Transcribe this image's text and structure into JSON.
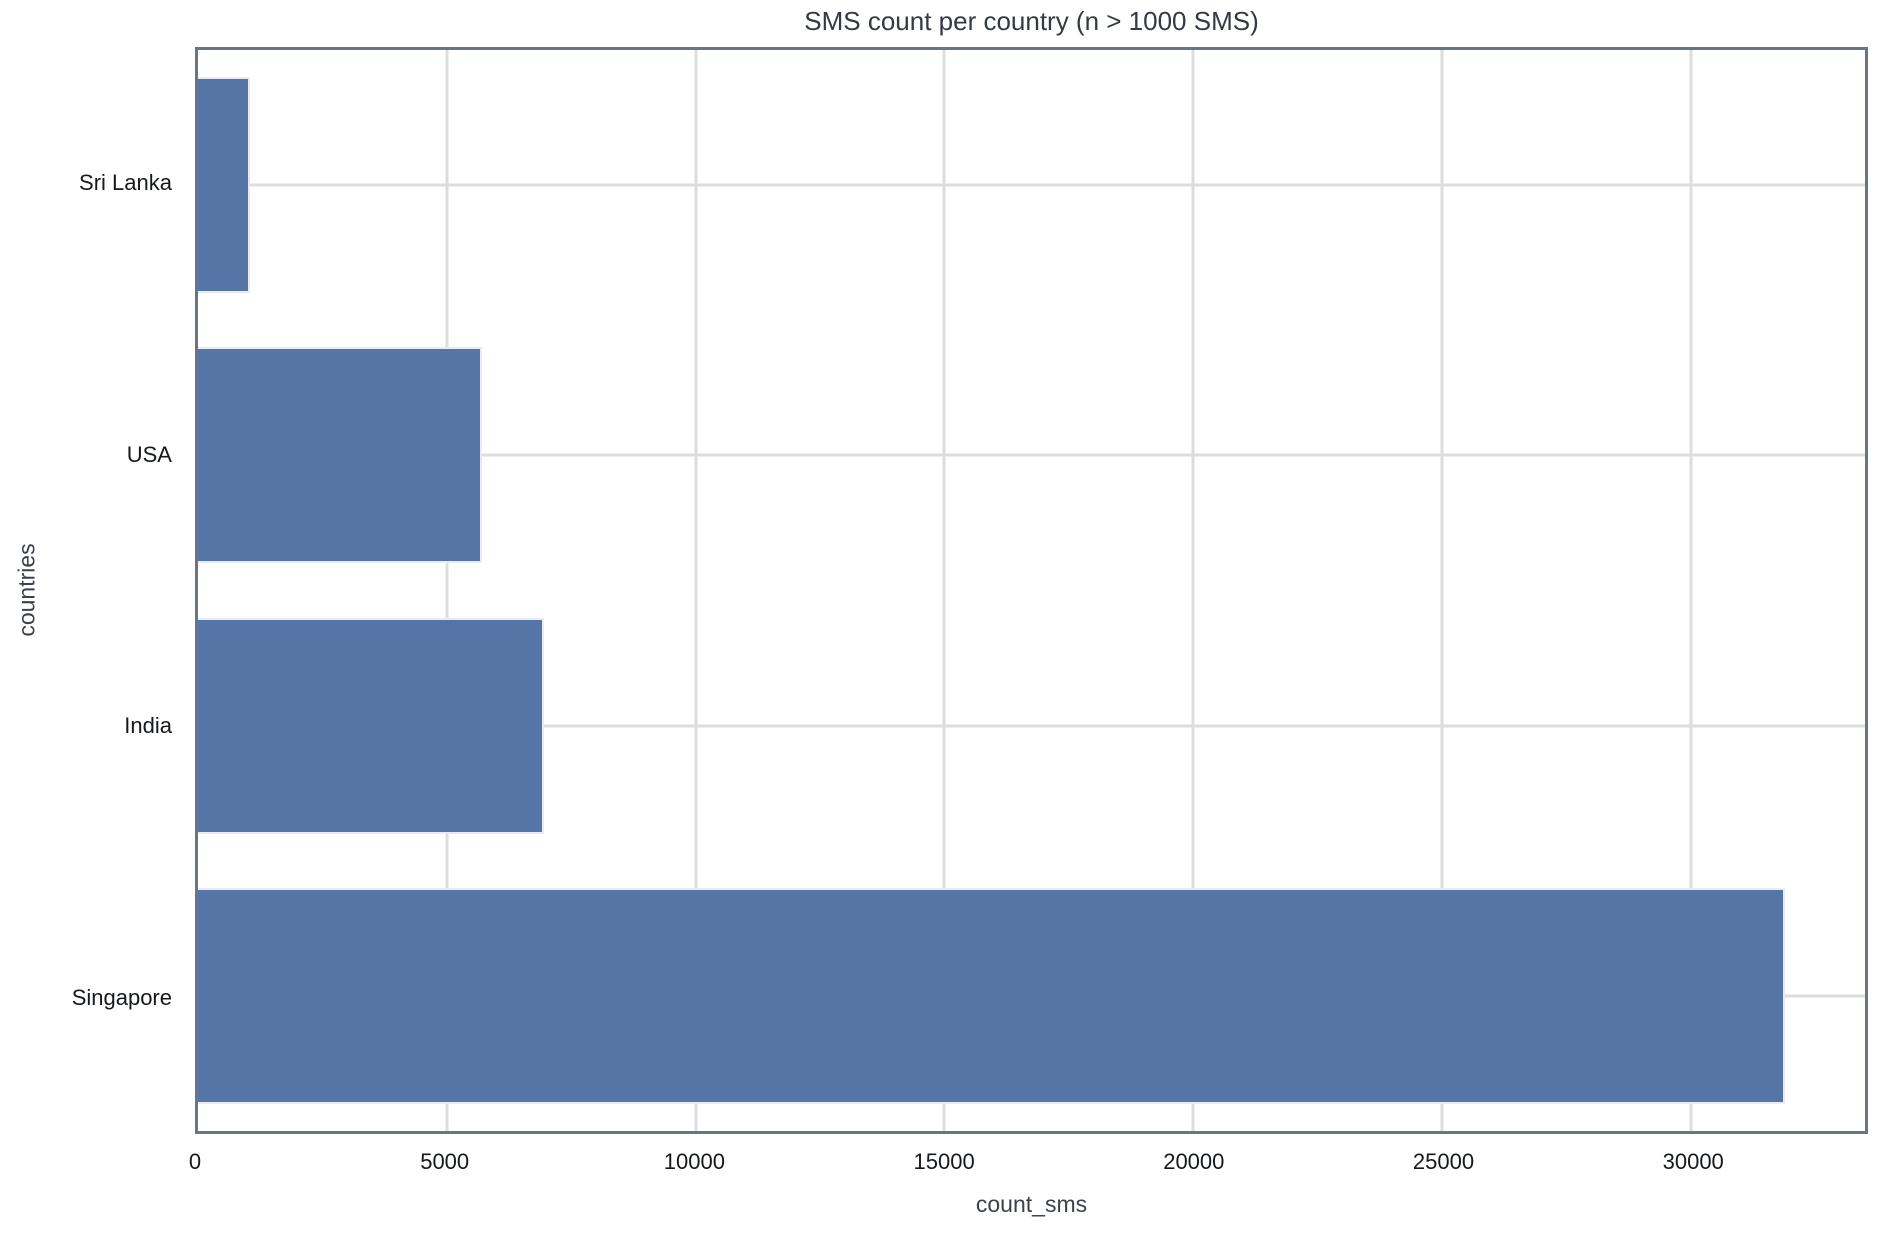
{
  "chart_data": {
    "type": "bar",
    "orientation": "horizontal",
    "title": "SMS count per country (n > 1000 SMS)",
    "xlabel": "count_sms",
    "ylabel": "countries",
    "categories": [
      "Sri Lanka",
      "USA",
      "India",
      "Singapore"
    ],
    "values": [
      1050,
      5700,
      6950,
      31900
    ],
    "xlim": [
      0,
      33500
    ],
    "xticks": [
      0,
      5000,
      10000,
      15000,
      20000,
      25000,
      30000
    ],
    "xtick_labels": [
      "0",
      "5000",
      "10000",
      "15000",
      "20000",
      "25000",
      "30000"
    ],
    "grid": true,
    "legend": false,
    "bar_color": "#5675a7",
    "bar_edge_color": "#e7ebf3",
    "grid_color": "#dddde0",
    "spine_color": "#6a7482",
    "background_color": "#ffffff"
  }
}
